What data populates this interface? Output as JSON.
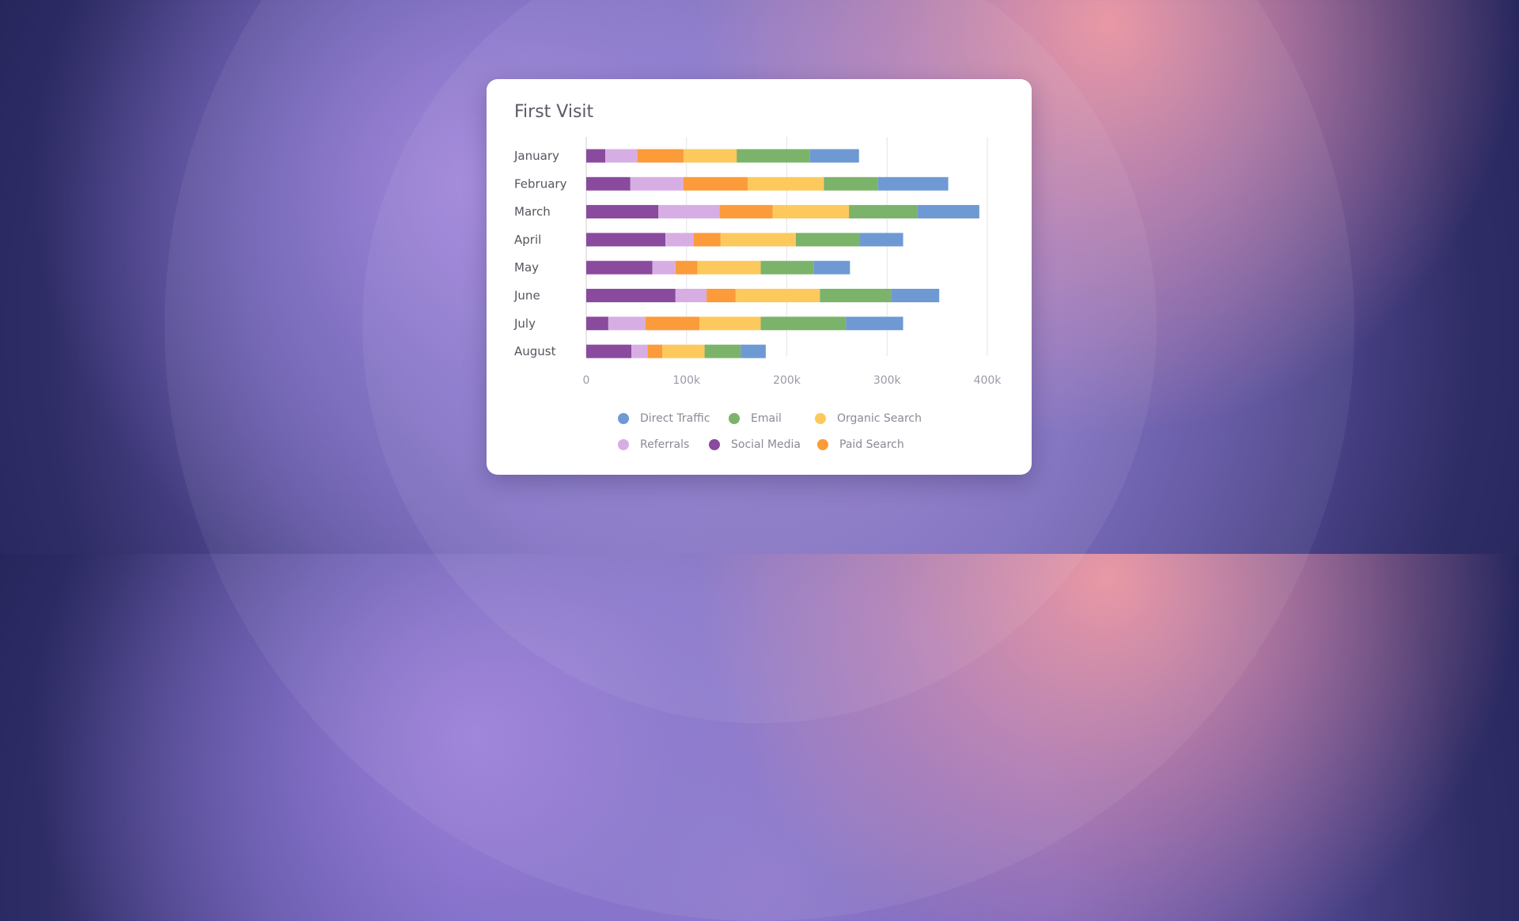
{
  "chart_data": {
    "type": "bar",
    "orientation": "horizontal",
    "stacked": true,
    "title": "First Visit",
    "categories": [
      "January",
      "February",
      "March",
      "April",
      "May",
      "June",
      "July",
      "August"
    ],
    "series": [
      {
        "name": "Social Media",
        "color": "#8a4a9e",
        "values": [
          19,
          44,
          72,
          79,
          66,
          89,
          22,
          45
        ]
      },
      {
        "name": "Referrals",
        "color": "#d7aee3",
        "values": [
          32,
          53,
          61,
          28,
          23,
          31,
          37,
          16
        ]
      },
      {
        "name": "Paid Search",
        "color": "#fb9b3a",
        "values": [
          46,
          64,
          53,
          27,
          22,
          29,
          54,
          15
        ]
      },
      {
        "name": "Organic Search",
        "color": "#fdc95c",
        "values": [
          53,
          76,
          76,
          75,
          63,
          84,
          61,
          42
        ]
      },
      {
        "name": "Email",
        "color": "#7bb36a",
        "values": [
          73,
          54,
          68,
          64,
          53,
          71,
          85,
          36
        ]
      },
      {
        "name": "Direct Traffic",
        "color": "#6e99d3",
        "values": [
          49,
          70,
          62,
          43,
          36,
          48,
          57,
          25
        ]
      }
    ],
    "xlim": [
      0,
      400
    ],
    "xticks": [
      0,
      100,
      200,
      300,
      400
    ],
    "xtick_labels": [
      "0",
      "100k",
      "200k",
      "300k",
      "400k"
    ],
    "units": "k",
    "grid": true,
    "legend_position": "bottom",
    "legend": [
      "Direct Traffic",
      "Email",
      "Organic Search",
      "Referrals",
      "Social Media",
      "Paid Search"
    ]
  }
}
